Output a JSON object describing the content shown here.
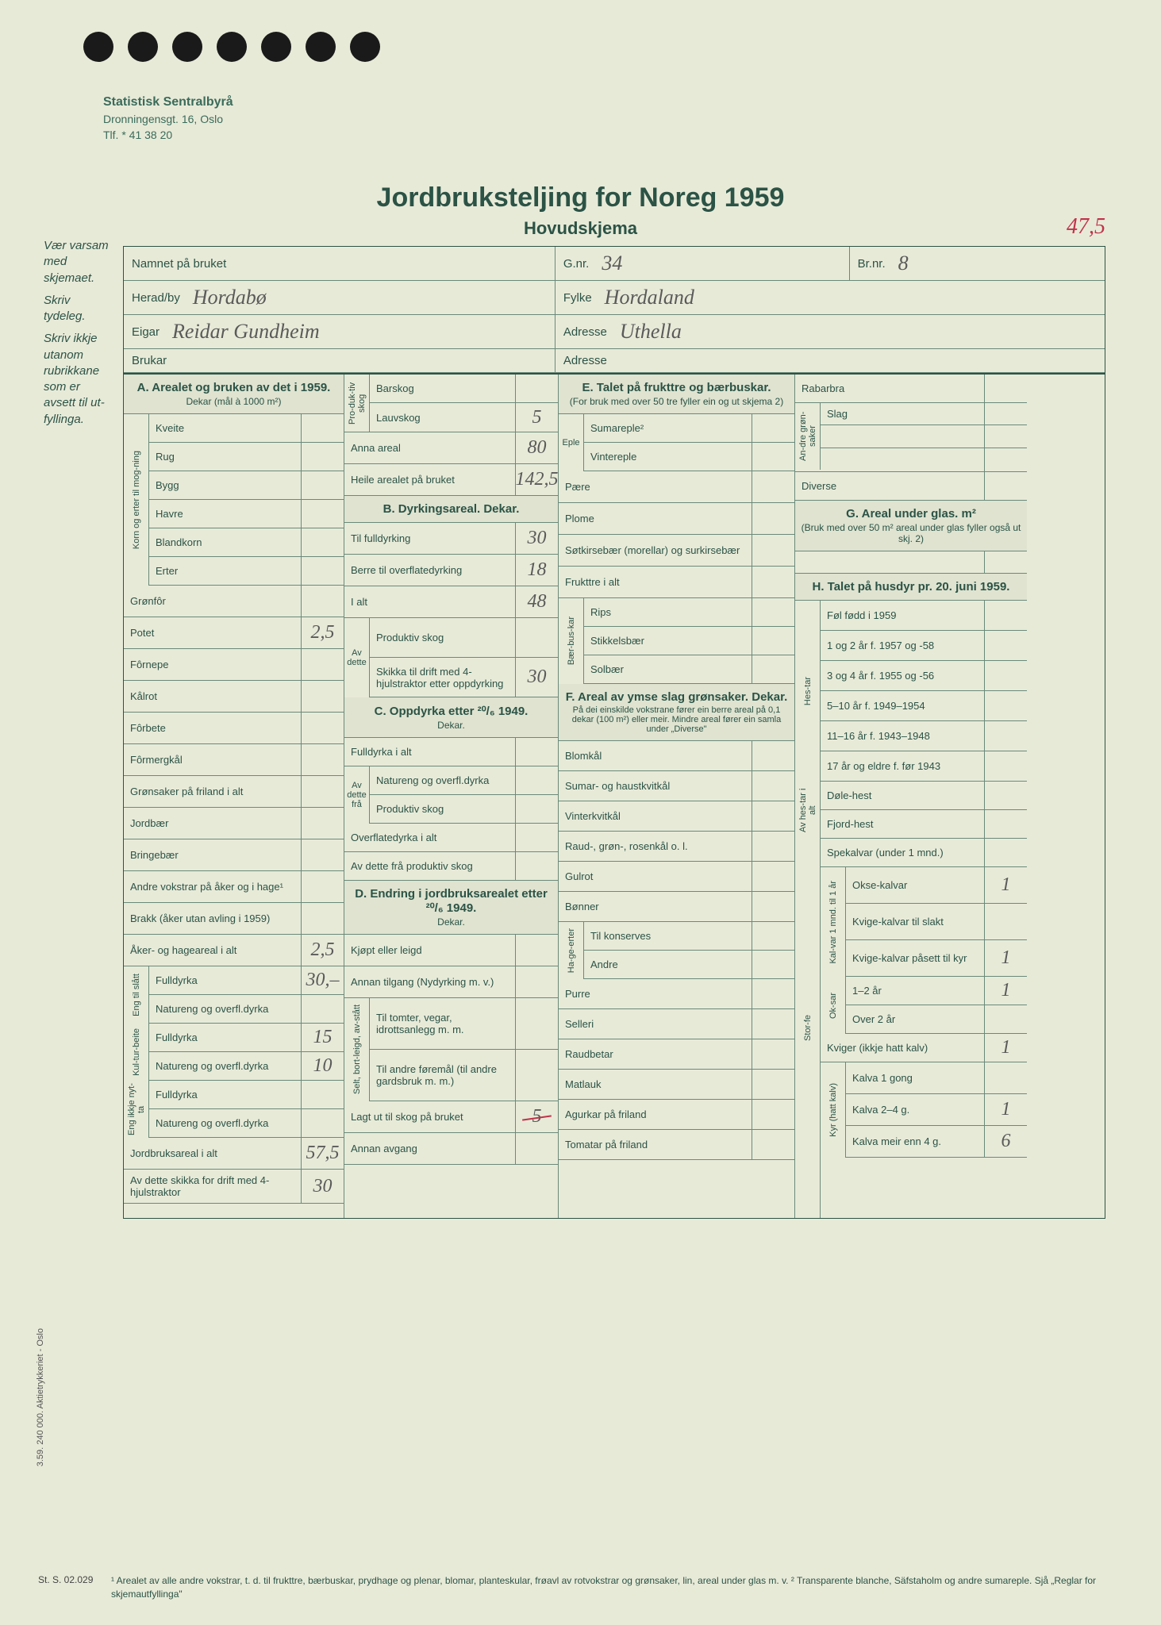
{
  "letterhead": {
    "org": "Statistisk Sentralbyrå",
    "addr1": "Dronningensgt. 16, Oslo",
    "addr2": "Tlf. * 41 38 20"
  },
  "title": {
    "main": "Jordbruksteljing for Noreg 1959",
    "sub": "Hovudskjema"
  },
  "handwritten_topright": "47,5",
  "instructions": {
    "p1": "Vær varsam med skjemaet.",
    "p2": "Skriv tydeleg.",
    "p3": "Skriv ikkje utanom rubrikkane som er avsett til ut-fyllinga."
  },
  "header": {
    "name_label": "Namnet på bruket",
    "name_value": "",
    "gnr_label": "G.nr.",
    "gnr_value": "34",
    "brnr_label": "Br.nr.",
    "brnr_value": "8",
    "herad_label": "Herad/by",
    "herad_value": "Hordabø",
    "fylke_label": "Fylke",
    "fylke_value": "Hordaland",
    "eigar_label": "Eigar",
    "eigar_value": "Reidar Gundheim",
    "adresse1_label": "Adresse",
    "adresse1_value": "Uthella",
    "brukar_label": "Brukar",
    "brukar_value": "",
    "adresse2_label": "Adresse",
    "adresse2_value": ""
  },
  "sect_a": {
    "title": "A. Arealet og bruken av det i 1959.",
    "subtitle": "Dekar (mål à 1000 m²)",
    "korn_label": "Korn og erter til mog-ning",
    "rows": [
      {
        "label": "Kveite",
        "value": ""
      },
      {
        "label": "Rug",
        "value": ""
      },
      {
        "label": "Bygg",
        "value": ""
      },
      {
        "label": "Havre",
        "value": ""
      },
      {
        "label": "Blandkorn",
        "value": ""
      },
      {
        "label": "Erter",
        "value": ""
      }
    ],
    "rows2": [
      {
        "label": "Grønfôr",
        "value": ""
      },
      {
        "label": "Potet",
        "value": "2,5"
      },
      {
        "label": "Fôrnepe",
        "value": ""
      },
      {
        "label": "Kålrot",
        "value": ""
      },
      {
        "label": "Fôrbete",
        "value": ""
      },
      {
        "label": "Fôrmergkål",
        "value": ""
      },
      {
        "label": "Grønsaker på friland i alt",
        "value": ""
      },
      {
        "label": "Jordbær",
        "value": ""
      },
      {
        "label": "Bringebær",
        "value": ""
      },
      {
        "label": "Andre vokstrar på åker og i hage¹",
        "value": ""
      },
      {
        "label": "Brakk (åker utan avling i 1959)",
        "value": ""
      },
      {
        "label": "Åker- og hageareal i alt",
        "value": "2,5"
      }
    ],
    "eng_label": "Eng til slått",
    "eng_rows": [
      {
        "label": "Fulldyrka",
        "value": "30,–"
      },
      {
        "label": "Natureng og overfl.dyrka",
        "value": ""
      }
    ],
    "kultur_label": "Kul-tur-beite",
    "kultur_rows": [
      {
        "label": "Fulldyrka",
        "value": "15"
      },
      {
        "label": "Natureng og overfl.dyrka",
        "value": "10"
      }
    ],
    "engikkje_label": "Eng ikkje nyt-ta",
    "engikkje_rows": [
      {
        "label": "Fulldyrka",
        "value": ""
      },
      {
        "label": "Natureng og overfl.dyrka",
        "value": ""
      }
    ],
    "bottom": [
      {
        "label": "Jordbruksareal i alt",
        "value": "57,5"
      },
      {
        "label": "Av dette skikka for drift med 4-hjulstraktor",
        "value": "30"
      }
    ]
  },
  "sect_prod": {
    "title": "Pro-duk-tiv skog",
    "rows": [
      {
        "label": "Barskog",
        "value": ""
      },
      {
        "label": "Lauvskog",
        "value": "5"
      }
    ],
    "rows2": [
      {
        "label": "Anna areal",
        "value": "80"
      },
      {
        "label": "Heile arealet på bruket",
        "value": "142,5"
      }
    ]
  },
  "sect_b": {
    "title": "B. Dyrkingsareal. Dekar.",
    "rows": [
      {
        "label": "Til fulldyrking",
        "value": "30"
      },
      {
        "label": "Berre til overflatedyrking",
        "value": "18"
      },
      {
        "label": "I alt",
        "value": "48"
      }
    ],
    "avdette_label": "Av dette",
    "avdette": [
      {
        "label": "Produktiv skog",
        "value": ""
      },
      {
        "label": "Skikka til drift med 4-hjulstraktor etter oppdyrking",
        "value": "30"
      }
    ]
  },
  "sect_c": {
    "title": "C. Oppdyrka etter ²⁰/₆ 1949.",
    "subtitle": "Dekar.",
    "rows": [
      {
        "label": "Fulldyrka i alt",
        "value": ""
      }
    ],
    "avdette_label": "Av dette frå",
    "avdette": [
      {
        "label": "Natureng og overfl.dyrka",
        "value": ""
      },
      {
        "label": "Produktiv skog",
        "value": ""
      }
    ],
    "rows2": [
      {
        "label": "Overflatedyrka i alt",
        "value": ""
      },
      {
        "label": "Av dette frå produktiv skog",
        "value": ""
      }
    ]
  },
  "sect_d": {
    "title": "D. Endring i jordbruksarealet etter ²⁰/₆ 1949.",
    "subtitle": "Dekar.",
    "rows": [
      {
        "label": "Kjøpt eller leigd",
        "value": ""
      },
      {
        "label": "Annan tilgang (Nydyrking m. v.)",
        "value": ""
      }
    ],
    "selt_label": "Selt, bort-leigd, av-stått",
    "selt": [
      {
        "label": "Til tomter, vegar, idrottsanlegg m. m.",
        "value": ""
      },
      {
        "label": "Til andre føremål (til andre gardsbruk m. m.)",
        "value": ""
      }
    ],
    "rows2": [
      {
        "label": "Lagt ut til skog på bruket",
        "value": "5",
        "redstrike": true
      },
      {
        "label": "Annan avgang",
        "value": ""
      }
    ]
  },
  "sect_e": {
    "title": "E. Talet på frukttre og bærbuskar.",
    "subtitle": "(For bruk med over 50 tre fyller ein og ut skjema 2)",
    "eple_label": "Eple",
    "eple": [
      {
        "label": "Sumareple²",
        "value": ""
      },
      {
        "label": "Vintereple",
        "value": ""
      }
    ],
    "rows": [
      {
        "label": "Pære",
        "value": ""
      },
      {
        "label": "Plome",
        "value": ""
      },
      {
        "label": "Søtkirsebær (morellar) og surkirsebær",
        "value": ""
      },
      {
        "label": "Frukttre i alt",
        "value": ""
      }
    ],
    "baer_label": "Bær-bus-kar",
    "baer": [
      {
        "label": "Rips",
        "value": ""
      },
      {
        "label": "Stikkelsbær",
        "value": ""
      },
      {
        "label": "Solbær",
        "value": ""
      }
    ]
  },
  "sect_f": {
    "title": "F. Areal av ymse slag grønsaker. Dekar.",
    "subtitle": "På dei einskilde vokstrane fører ein berre areal på 0,1 dekar (100 m²) eller meir. Mindre areal fører ein samla under „Diverse\"",
    "rows": [
      {
        "label": "Blomkål",
        "value": ""
      },
      {
        "label": "Sumar- og haustkvitkål",
        "value": ""
      },
      {
        "label": "Vinterkvitkål",
        "value": ""
      },
      {
        "label": "Raud-, grøn-, rosenkål o. l.",
        "value": ""
      },
      {
        "label": "Gulrot",
        "value": ""
      },
      {
        "label": "Bønner",
        "value": ""
      }
    ],
    "hage_label": "Ha-ge-erter",
    "hage": [
      {
        "label": "Til konserves",
        "value": ""
      },
      {
        "label": "Andre",
        "value": ""
      }
    ],
    "rows2": [
      {
        "label": "Purre",
        "value": ""
      },
      {
        "label": "Selleri",
        "value": ""
      },
      {
        "label": "Raudbetar",
        "value": ""
      },
      {
        "label": "Matlauk",
        "value": ""
      },
      {
        "label": "Agurkar på friland",
        "value": ""
      },
      {
        "label": "Tomatar på friland",
        "value": ""
      }
    ]
  },
  "sect_rab": {
    "rows": [
      {
        "label": "Rabarbra",
        "value": ""
      }
    ],
    "andre_label": "An-dre grøn-saker",
    "slag_label": "Slag",
    "andre": [
      {
        "label": "",
        "value": ""
      },
      {
        "label": "",
        "value": ""
      }
    ],
    "diverse": {
      "label": "Diverse",
      "value": ""
    }
  },
  "sect_g": {
    "title": "G. Areal under glas. m²",
    "subtitle": "(Bruk med over 50 m² areal under glas fyller også ut skj. 2)",
    "value": ""
  },
  "sect_h": {
    "title": "H. Talet på husdyr pr. 20. juni 1959.",
    "hest_label": "Hes-tar",
    "hest": [
      {
        "label": "Føl fødd i 1959",
        "value": ""
      },
      {
        "label": "1 og 2 år f. 1957 og -58",
        "value": ""
      },
      {
        "label": "3 og 4 år f. 1955 og -56",
        "value": ""
      },
      {
        "label": "5–10 år f. 1949–1954",
        "value": ""
      },
      {
        "label": "11–16 år f. 1943–1948",
        "value": ""
      },
      {
        "label": "17 år og eldre f. før 1943",
        "value": ""
      }
    ],
    "avhest_label": "Av hes-tar i alt",
    "avhest": [
      {
        "label": "Døle-hest",
        "value": ""
      },
      {
        "label": "Fjord-hest",
        "value": ""
      }
    ],
    "storfe_label": "Stor-fe",
    "storfe_rows": [
      {
        "label": "Spekalvar (under 1 mnd.)",
        "value": ""
      }
    ],
    "kalvar_label": "Kal-var 1 mnd. til 1 år",
    "kalvar": [
      {
        "label": "Okse-kalvar",
        "value": "1"
      },
      {
        "label": "Kvige-kalvar til slakt",
        "value": ""
      },
      {
        "label": "Kvige-kalvar påsett til kyr",
        "value": "1"
      }
    ],
    "oksar_label": "Ok-sar",
    "oksar": [
      {
        "label": "1–2 år",
        "value": "1"
      },
      {
        "label": "Over 2 år",
        "value": ""
      }
    ],
    "kviger": {
      "label": "Kviger (ikkje hatt kalv)",
      "value": "1"
    },
    "kyr_label": "Kyr (hatt kalv)",
    "kyr": [
      {
        "label": "Kalva 1 gong",
        "value": ""
      },
      {
        "label": "Kalva 2–4 g.",
        "value": "1"
      },
      {
        "label": "Kalva meir enn 4 g.",
        "value": "6"
      }
    ]
  },
  "footnote": "¹ Arealet av alle andre vokstrar, t. d. til frukttre, bærbuskar, prydhage og plenar, blomar, planteskular, frøavl av rotvokstrar og grønsaker, lin, areal under glas m. v.   ² Transparente blanche, Säfstaholm og andre sumareple. Sjå „Reglar for skjemautfyllinga\"",
  "sidebar_print": "3.59. 240 000. Aktietrykkeriet - Oslo",
  "ref_code": "St. S. 02.029"
}
